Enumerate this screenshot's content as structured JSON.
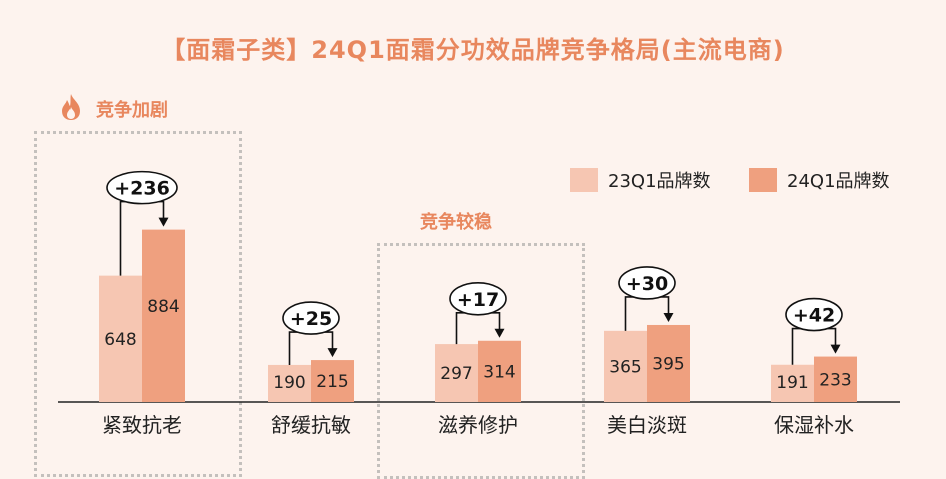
{
  "title": "【面霜子类】24Q1面霜分功效品牌竞争格局(主流电商)",
  "tags": {
    "hot": "竞争加剧",
    "stable": "竞争较稳"
  },
  "icons": {
    "hot": "fire-icon"
  },
  "colors": {
    "background": "#fdf3ee",
    "accent": "#e8875e",
    "series_23q1": "#f6c6b2",
    "series_24q1": "#efa07f"
  },
  "chart_data": {
    "type": "bar",
    "categories": [
      "紧致抗老",
      "舒缓抗敏",
      "滋养修护",
      "美白淡斑",
      "保湿补水"
    ],
    "series": [
      {
        "name": "23Q1品牌数",
        "values": [
          648,
          190,
          297,
          365,
          191
        ]
      },
      {
        "name": "24Q1品牌数",
        "values": [
          884,
          215,
          314,
          395,
          233
        ]
      }
    ],
    "changes": [
      "+236",
      "+25",
      "+17",
      "+30",
      "+42"
    ],
    "ylim": [
      0,
      1100
    ],
    "legend": "top-right",
    "grid": false
  }
}
